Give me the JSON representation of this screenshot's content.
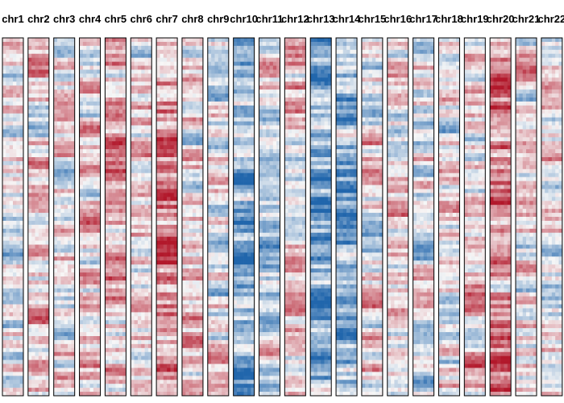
{
  "chart_data": {
    "type": "heatmap",
    "title": "",
    "xlabel": "",
    "ylabel": "",
    "grid": false,
    "legend": false,
    "columns": [
      "chr1",
      "chr2",
      "chr3",
      "chr4",
      "chr5",
      "chr6",
      "chr7",
      "chr8",
      "chr9",
      "chr10",
      "chr11",
      "chr12",
      "chr13",
      "chr14",
      "chr15",
      "chr16",
      "chr17",
      "chr18",
      "chr19",
      "chr20",
      "chr21",
      "chr22"
    ],
    "color_scale": {
      "low_color": "#2166ac",
      "mid_color": "#f7f7f7",
      "high_color": "#b2182b",
      "range": [
        -1,
        1
      ]
    },
    "mean_values": [
      0.02,
      0.08,
      0.05,
      0.04,
      0.22,
      0.06,
      0.45,
      0.12,
      0.02,
      -0.55,
      -0.15,
      0.08,
      -0.6,
      -0.45,
      0.03,
      0.06,
      -0.05,
      0.0,
      0.12,
      0.4,
      0.06,
      0.03
    ],
    "n_rows": 90
  }
}
